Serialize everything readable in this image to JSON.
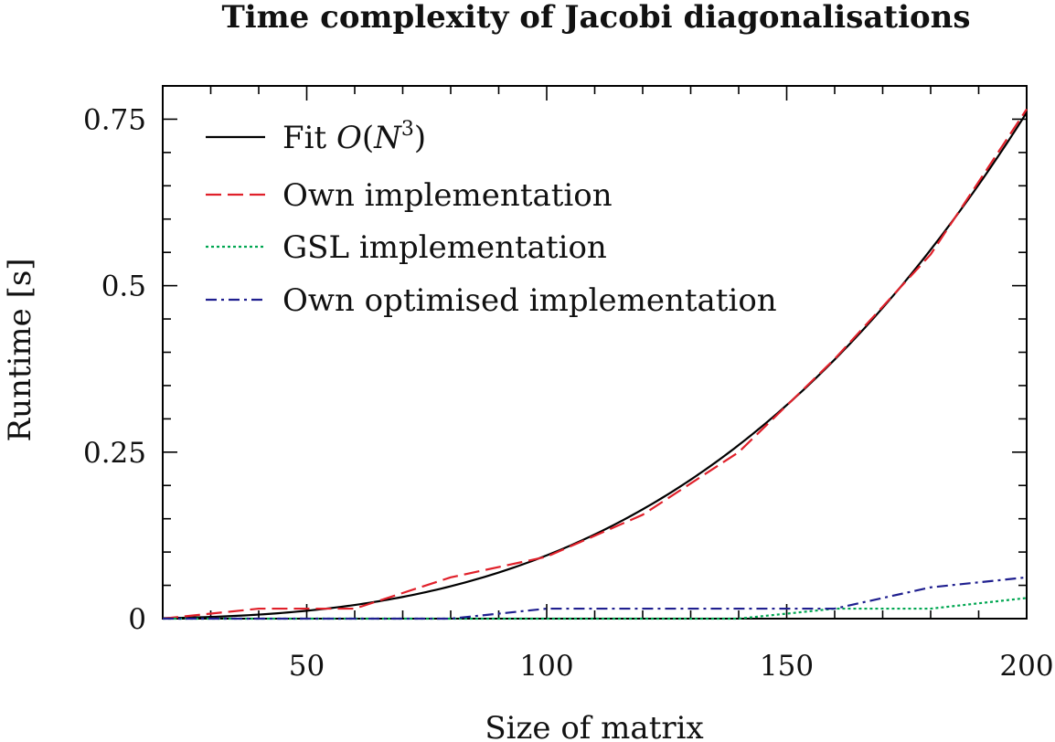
{
  "chart_data": {
    "type": "line",
    "title": "Time complexity of Jacobi diagonalisations",
    "xlabel": "Size of matrix",
    "ylabel": "Runtime [s]",
    "xlim": [
      20,
      200
    ],
    "ylim": [
      0,
      0.8
    ],
    "xticks": [
      50,
      100,
      150,
      200
    ],
    "xtick_labels": [
      "50",
      "100",
      "150",
      "200"
    ],
    "yticks": [
      0,
      0.25,
      0.5,
      0.75
    ],
    "ytick_labels": [
      "0",
      "0.25",
      "0.5",
      "0.75"
    ],
    "x_minor_step": 10,
    "y_minor_step": 0.05,
    "grid": false,
    "legend_position": "top-left",
    "series": [
      {
        "name": "Fit O(N³)",
        "legend_text": "Fit ",
        "legend_math": "O",
        "legend_math_rest": "(N",
        "legend_sup": "3",
        "legend_close": ")",
        "color": "#000000",
        "style": "solid",
        "function": "cubic",
        "coef": 9.5e-08
      },
      {
        "name": "Own implementation",
        "color": "#e0202a",
        "style": "dashed",
        "x": [
          20,
          40,
          60,
          80,
          100,
          120,
          140,
          160,
          180,
          200
        ],
        "y": [
          0,
          0.015,
          0.015,
          0.062,
          0.093,
          0.156,
          0.25,
          0.39,
          0.547,
          0.765
        ]
      },
      {
        "name": "GSL implementation",
        "color": "#00a651",
        "style": "dotted",
        "x": [
          20,
          40,
          60,
          80,
          100,
          120,
          140,
          160,
          180,
          200
        ],
        "y": [
          0,
          0,
          0,
          0,
          0,
          0,
          0,
          0.015,
          0.015,
          0.031
        ]
      },
      {
        "name": "Own optimised implementation",
        "color": "#1f1f8f",
        "style": "dashdot",
        "x": [
          20,
          40,
          60,
          80,
          100,
          120,
          140,
          160,
          180,
          200
        ],
        "y": [
          0,
          0,
          0,
          0,
          0.015,
          0.015,
          0.015,
          0.015,
          0.047,
          0.062
        ]
      }
    ]
  }
}
